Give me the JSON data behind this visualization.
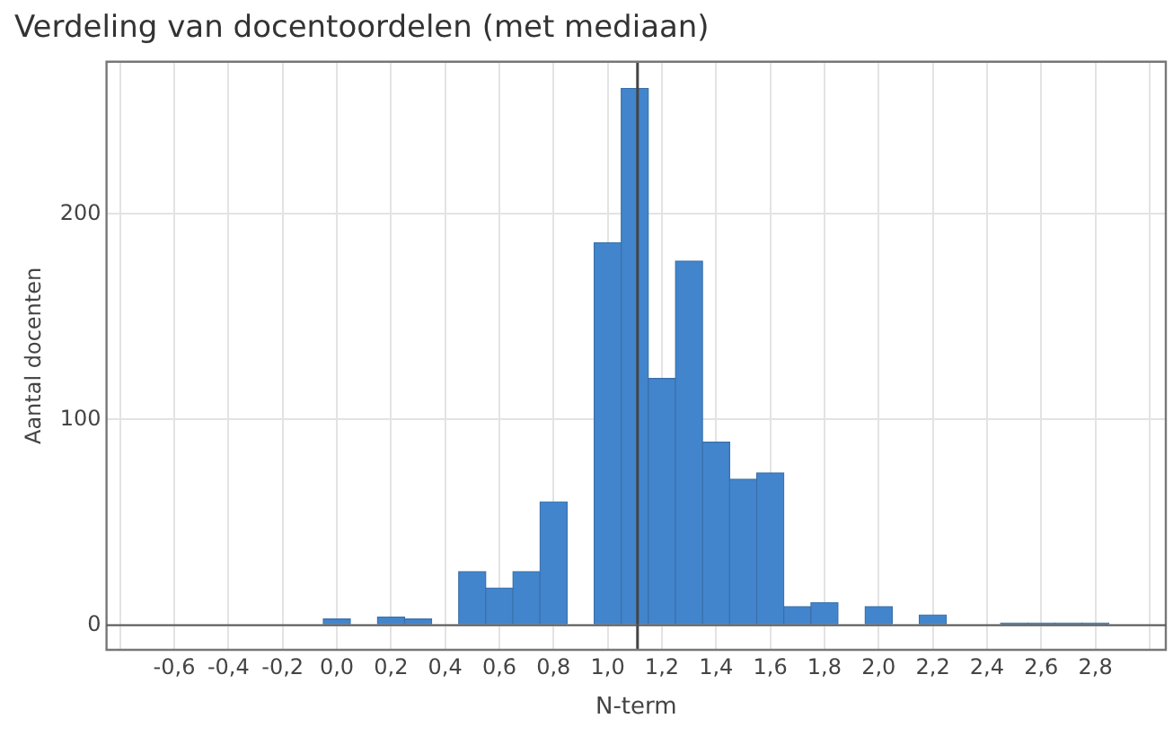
{
  "chart_data": {
    "type": "histogram",
    "title": "Verdeling van docentoordelen (met mediaan)",
    "xlabel": "N-term",
    "ylabel": "Aantal docenten",
    "bins": [
      -0.05,
      0.05,
      0.15,
      0.25,
      0.35,
      0.45,
      0.55,
      0.65,
      0.75,
      0.85,
      0.95,
      1.05,
      1.15,
      1.25,
      1.35,
      1.45,
      1.55,
      1.65,
      1.75,
      1.85,
      1.95,
      2.05,
      2.15,
      2.25,
      2.35,
      2.45,
      2.55,
      2.65,
      2.75,
      2.85
    ],
    "values": [
      3,
      0,
      4,
      3,
      0,
      26,
      18,
      26,
      60,
      0,
      186,
      261,
      120,
      177,
      89,
      71,
      74,
      9,
      11,
      0,
      9,
      0,
      5,
      0,
      0,
      1,
      1,
      1,
      1
    ],
    "color": "#4285cc",
    "xlim": [
      -0.85,
      3.06
    ],
    "xticks": [
      {
        "value": -0.8,
        "label": null
      },
      {
        "value": -0.6,
        "label": "-0,6"
      },
      {
        "value": -0.4,
        "label": "-0,4"
      },
      {
        "value": -0.2,
        "label": "-0,2"
      },
      {
        "value": 0,
        "label": "0,0"
      },
      {
        "value": 0.2,
        "label": "0,2"
      },
      {
        "value": 0.4,
        "label": "0,4"
      },
      {
        "value": 0.6,
        "label": "0,6"
      },
      {
        "value": 0.8,
        "label": "0,8"
      },
      {
        "value": 1,
        "label": "1,0"
      },
      {
        "value": 1.2,
        "label": "1,2"
      },
      {
        "value": 1.4,
        "label": "1,4"
      },
      {
        "value": 1.6,
        "label": "1,6"
      },
      {
        "value": 1.8,
        "label": "1,8"
      },
      {
        "value": 2,
        "label": "2,0"
      },
      {
        "value": 2.2,
        "label": "2,2"
      },
      {
        "value": 2.4,
        "label": "2,4"
      },
      {
        "value": 2.6,
        "label": "2,6"
      },
      {
        "value": 2.8,
        "label": "2,8"
      },
      {
        "value": 3,
        "label": null
      }
    ],
    "ylim": [
      -12,
      274
    ],
    "yticks": [
      0,
      100,
      200
    ],
    "grid": true,
    "ref_lines": [
      {
        "axis": "x",
        "value": 1.11,
        "color": "#444444"
      }
    ]
  }
}
